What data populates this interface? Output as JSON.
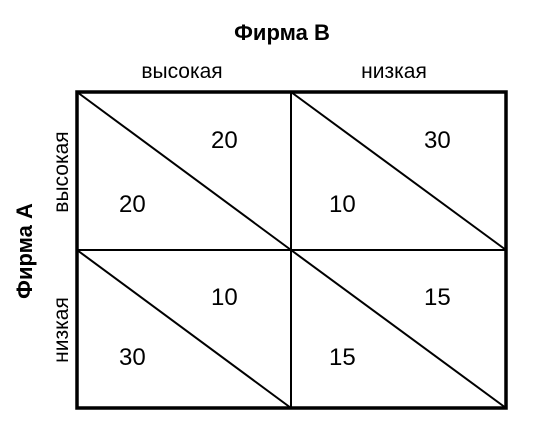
{
  "firm_b_label": "Фирма B",
  "firm_a_label": "Фирма A",
  "columns": [
    "высокая",
    "низкая"
  ],
  "rows": [
    "высокая",
    "низкая"
  ],
  "cells": [
    [
      {
        "a": "20",
        "b": "20"
      },
      {
        "a": "10",
        "b": "30"
      }
    ],
    [
      {
        "a": "30",
        "b": "10"
      },
      {
        "a": "15",
        "b": "15"
      }
    ]
  ],
  "colors": {
    "line": "#000000",
    "background": "#ffffff"
  }
}
